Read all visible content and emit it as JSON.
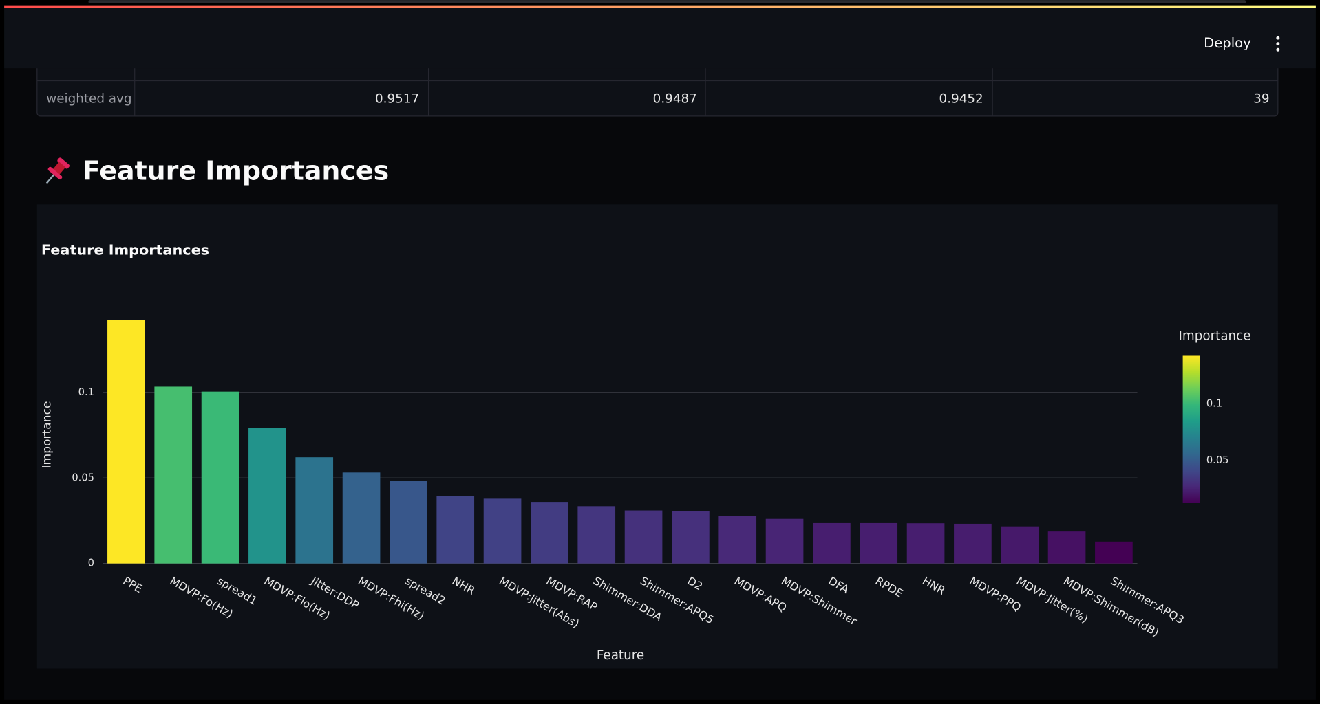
{
  "header": {
    "button": "Deploy"
  },
  "table": {
    "row_label": "weighted avg",
    "cells": [
      0.9517,
      0.9487,
      0.9452,
      39
    ]
  },
  "section": {
    "heading": "Feature Importances"
  },
  "chart_data": {
    "type": "bar",
    "title": "Feature Importances",
    "x_label": "Feature",
    "y_label": "Importance",
    "categories": [
      "PPE",
      "MDVP:Fo(Hz)",
      "spread1",
      "MDVP:Flo(Hz)",
      "Jitter:DDP",
      "MDVP:Fhi(Hz)",
      "spread2",
      "NHR",
      "MDVP:Jitter(Abs)",
      "MDVP:RAP",
      "Shimmer:DDA",
      "Shimmer:APQ5",
      "D2",
      "MDVP:APQ",
      "MDVP:Shimmer",
      "DFA",
      "RPDE",
      "HNR",
      "MDVP:PPQ",
      "MDVP:Jitter(%)",
      "MDVP:Shimmer(dB)",
      "Shimmer:APQ3"
    ],
    "values": [
      0.1424,
      0.1034,
      0.1005,
      0.0793,
      0.0621,
      0.0532,
      0.0483,
      0.0394,
      0.0379,
      0.036,
      0.0335,
      0.031,
      0.0305,
      0.0276,
      0.0261,
      0.0236,
      0.0236,
      0.0235,
      0.0232,
      0.0217,
      0.0187,
      0.0128
    ],
    "ylim": [
      0,
      0.1495
    ],
    "yticks": [
      0,
      0.05,
      0.1
    ],
    "grid": true,
    "colorscale": "Viridis",
    "colorbar": {
      "title": "Importance",
      "ticks": [
        0.05,
        0.1
      ]
    }
  }
}
